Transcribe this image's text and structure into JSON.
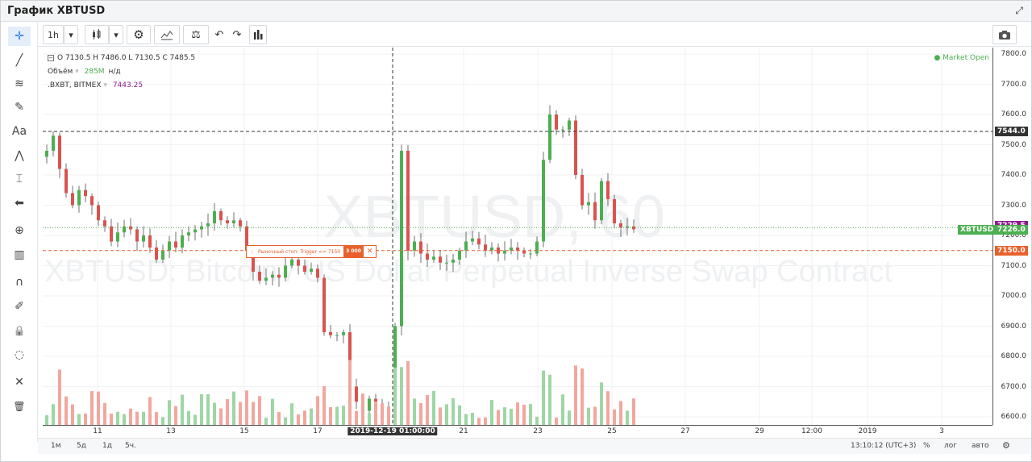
{
  "window": {
    "title": "График XBTUSD"
  },
  "toolbar": {
    "interval": "1h",
    "chart_type_icon": "candles-icon",
    "settings_icon": "gear-icon",
    "indicators_icon": "indicators-icon",
    "compare_icon": "scales-icon",
    "undo_icon": "undo-icon",
    "redo_icon": "redo-icon",
    "bars_icon": "bars-icon",
    "camera_icon": "camera-icon"
  },
  "left_tools": [
    "crosshair-icon",
    "trendline-icon",
    "fib-icon",
    "brush-icon",
    "text-icon",
    "pattern-icon",
    "measure-icon",
    "arrow-left-icon",
    "zoom-icon",
    "ruler-icon",
    "magnet-icon",
    "pencil-lock-icon",
    "lock-icon",
    "eye-hidden-icon",
    "wrench-icon",
    "trash-icon"
  ],
  "legend": {
    "ohlc": "O 7130.5 H 7486.0 L 7130.5 C 7485.5",
    "volume_label": "Объём",
    "volume_value": "285M",
    "volume_na": "н/д",
    "index_label": ".BXBT, BITMEX",
    "index_value": "7443.25",
    "market_status": "Market Open"
  },
  "watermark": {
    "line1": "XBTUSD, 60",
    "line2": "XBTUSD: Bitcoin / US Dollar Perpetual Inverse Swap Contract"
  },
  "order": {
    "label": "Рыночный стоп: Trigger <= 7150",
    "qty": "3 000",
    "close": "✕"
  },
  "price_badges": {
    "crosshair": "7544.0",
    "index": "7229.5",
    "symbol": "XBTUSD",
    "last": "7226.0",
    "order": "7150.0"
  },
  "price_ticks": [
    "7800.0",
    "7700.0",
    "7600.0",
    "7500.0",
    "7400.0",
    "7300.0",
    "7200.0",
    "7100.0",
    "7000.0",
    "6900.0",
    "6800.0",
    "6700.0",
    "6600.0"
  ],
  "time_ticks": [
    "11",
    "13",
    "15",
    "17",
    "2019-12-19 01:00:00",
    "21",
    "23",
    "25",
    "27",
    "29",
    "12:00",
    "2019",
    "3"
  ],
  "bottom": {
    "ranges": [
      "1м",
      "5д",
      "1д",
      "5ч."
    ],
    "clock": "13:10:12 (UTC+3)",
    "percent": "%",
    "log": "лог",
    "auto": "авто"
  },
  "colors": {
    "up": "#4caf50",
    "down": "#d9534f",
    "volume_up": "#9ed6a4",
    "volume_down": "#f2a79e",
    "order": "#e8612c",
    "index": "#8e1a8e"
  },
  "chart_data": {
    "type": "candlestick",
    "symbol": "XBTUSD",
    "interval": "60",
    "ylim": [
      6580,
      7820
    ],
    "x_ticks": [
      "11",
      "13",
      "15",
      "17",
      "2019-12-19 01:00:00",
      "21",
      "23",
      "25",
      "27",
      "29",
      "12:00",
      "2019",
      "3"
    ],
    "closes": [
      7480,
      7530,
      7420,
      7340,
      7300,
      7350,
      7330,
      7300,
      7250,
      7230,
      7180,
      7210,
      7230,
      7220,
      7180,
      7200,
      7160,
      7120,
      7150,
      7180,
      7160,
      7200,
      7210,
      7220,
      7230,
      7240,
      7280,
      7250,
      7240,
      7250,
      7230,
      7150,
      7080,
      7050,
      7060,
      7070,
      7060,
      7100,
      7120,
      7100,
      7080,
      7090,
      7060,
      6880,
      6870,
      6870,
      6880,
      6700,
      6650,
      6620,
      6660,
      6640,
      6620,
      6600,
      6900,
      7480,
      7150,
      7180,
      7140,
      7120,
      7130,
      7110,
      7110,
      7120,
      7150,
      7180,
      7190,
      7170,
      7150,
      7160,
      7140,
      7150,
      7160,
      7150,
      7140,
      7140,
      7180,
      7450,
      7600,
      7550,
      7550,
      7580,
      7400,
      7300,
      7310,
      7250,
      7380,
      7320,
      7240,
      7226,
      7230,
      7220
    ]
  }
}
